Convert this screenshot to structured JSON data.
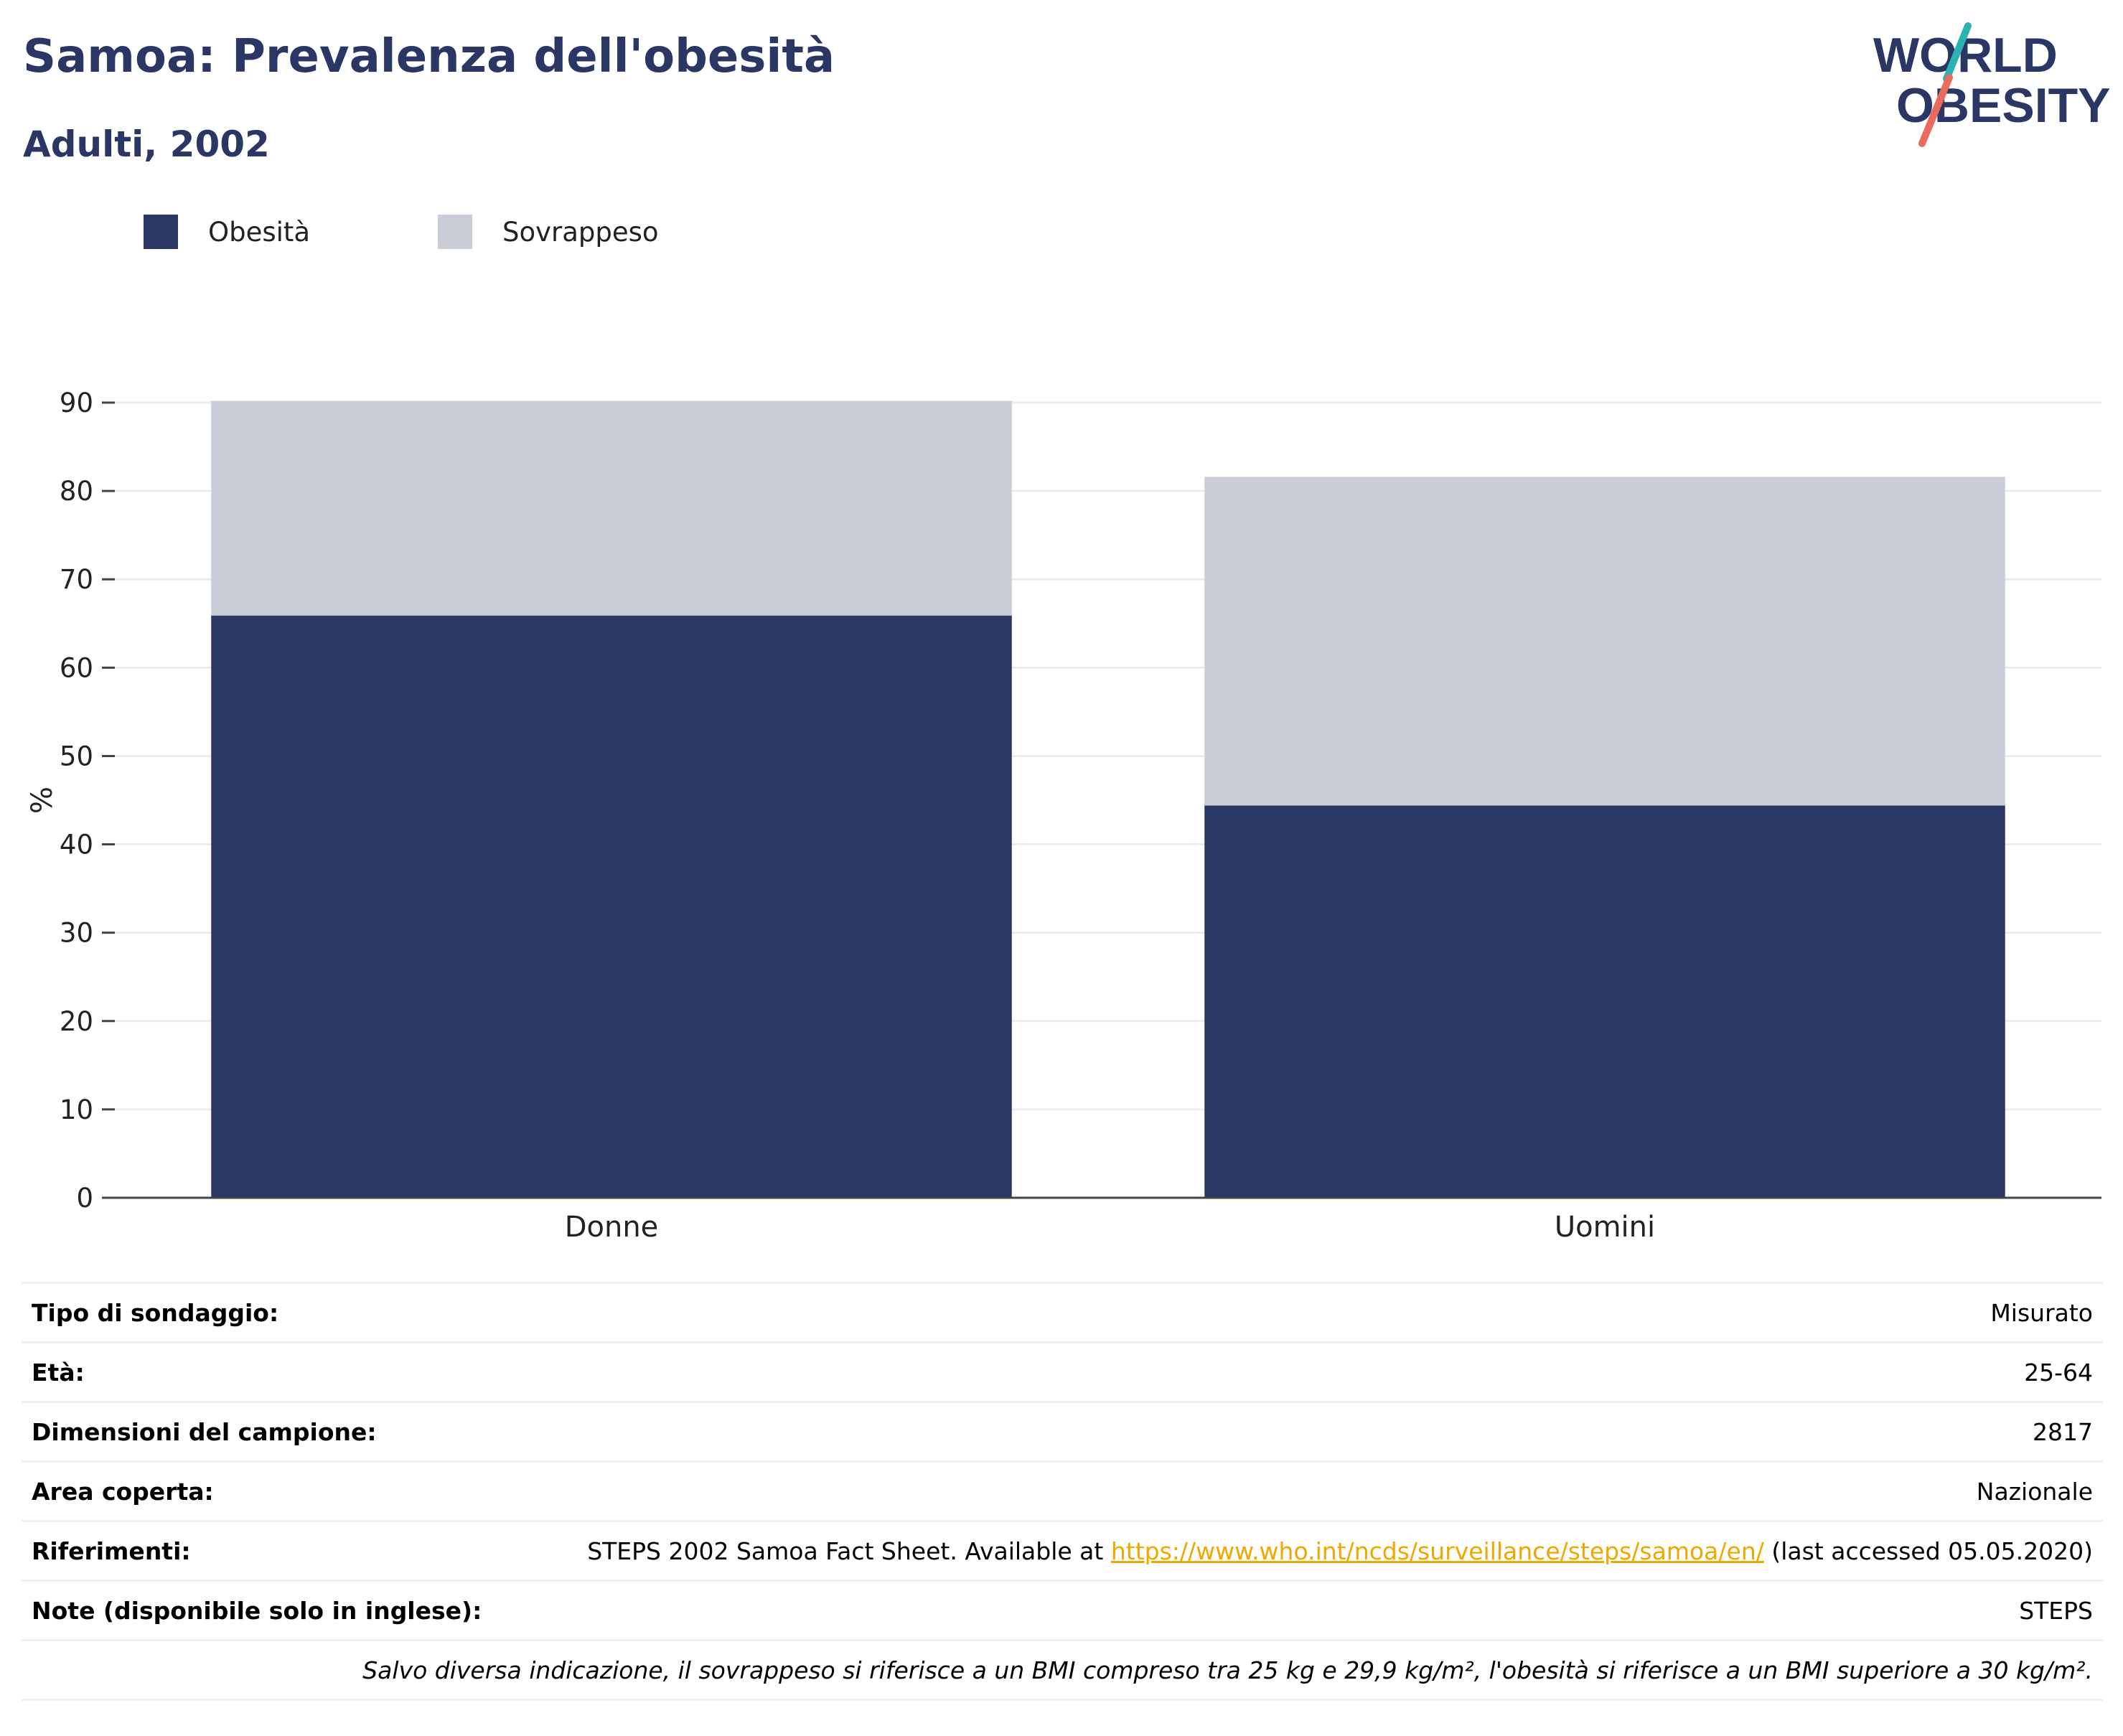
{
  "header": {
    "title": "Samoa: Prevalenza dell'obesità",
    "subtitle": "Adulti, 2002",
    "logo_line1": "WORLD",
    "logo_line2": "OBESITY"
  },
  "legend": [
    {
      "label": "Obesità",
      "color": "#2a3764"
    },
    {
      "label": "Sovrappeso",
      "color": "#cacdd8"
    }
  ],
  "chart_data": {
    "type": "bar",
    "stacked": true,
    "categories": [
      "Donne",
      "Uomini"
    ],
    "series": [
      {
        "name": "Obesità",
        "values": [
          65.9,
          44.4
        ],
        "color": "#2a3764"
      },
      {
        "name": "Sovrappeso",
        "values": [
          24.3,
          37.2
        ],
        "color": "#cacdd8"
      }
    ],
    "ylabel": "%",
    "ylim": [
      0,
      90
    ],
    "yticks": [
      0,
      10,
      20,
      30,
      40,
      50,
      60,
      70,
      80,
      90
    ],
    "grid": true
  },
  "info": {
    "rows": [
      {
        "key": "Tipo di sondaggio:",
        "value": "Misurato"
      },
      {
        "key": "Età:",
        "value": "25-64"
      },
      {
        "key": "Dimensioni del campione:",
        "value": "2817"
      },
      {
        "key": "Area coperta:",
        "value": "Nazionale"
      }
    ],
    "references": {
      "key": "Riferimenti:",
      "prefix": "STEPS 2002 Samoa Fact Sheet. Available at ",
      "link": "https://www.who.int/ncds/surveillance/steps/samoa/en/",
      "suffix": " (last accessed 05.05.2020)"
    },
    "notes": {
      "key": "Note (disponibile solo in inglese):",
      "value": "STEPS"
    },
    "footnote": "Salvo diversa indicazione, il sovrappeso si riferisce a un BMI compreso tra 25 kg e 29,9 kg/m², l'obesità si riferisce a un BMI superiore a 30 kg/m²."
  }
}
